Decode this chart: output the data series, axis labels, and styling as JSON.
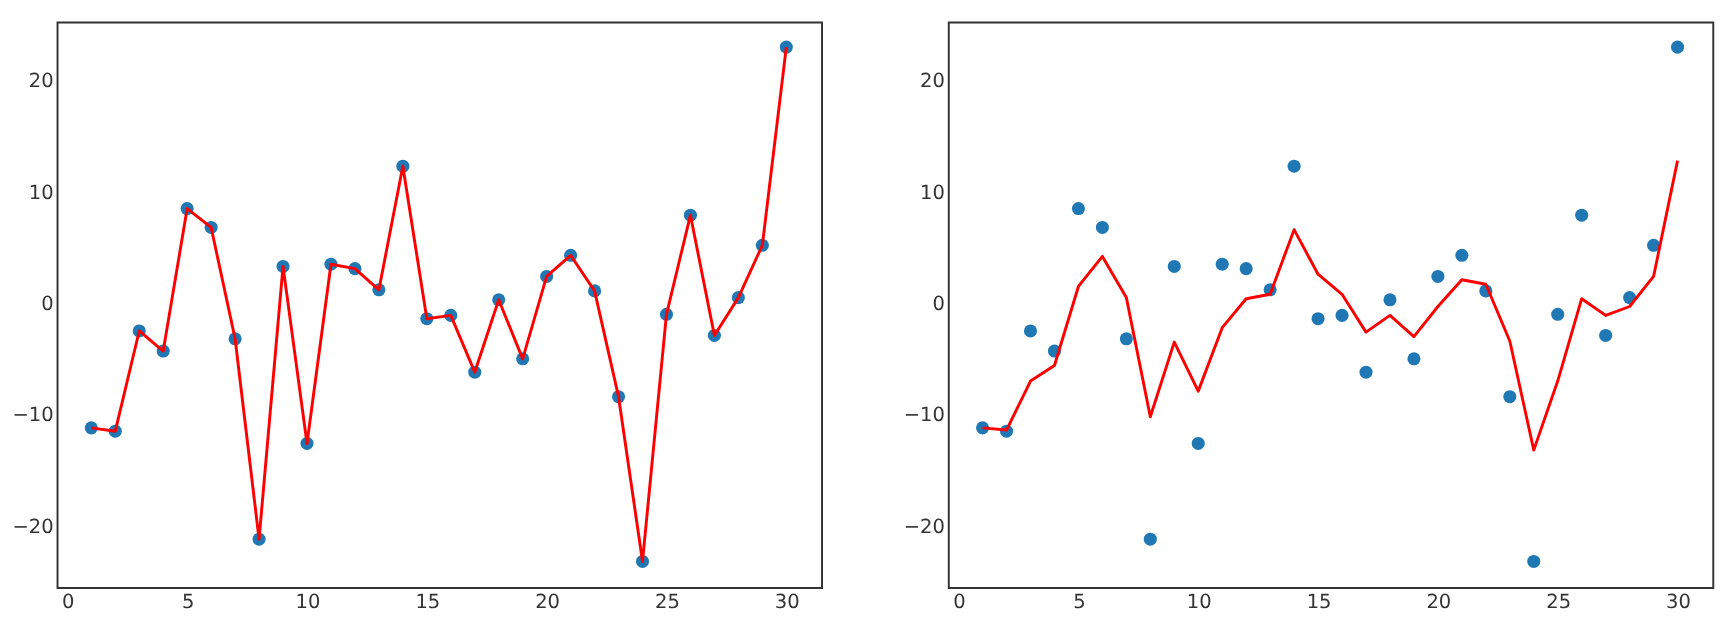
{
  "chart_data": [
    {
      "type": "scatter",
      "x": [
        1,
        2,
        3,
        4,
        5,
        6,
        7,
        8,
        9,
        10,
        11,
        12,
        13,
        14,
        15,
        16,
        17,
        18,
        19,
        20,
        21,
        22,
        23,
        24,
        25,
        26,
        27,
        28,
        29,
        30
      ],
      "xlim": [
        -0.45,
        31.45
      ],
      "xticks": [
        0,
        5,
        10,
        15,
        20,
        25,
        30
      ],
      "ylim": [
        -25.5,
        25.3
      ],
      "yticks": [
        -20,
        -10,
        0,
        10,
        20
      ],
      "grid": false,
      "series": [
        {
          "marker": "circle",
          "color": "#1f77b4",
          "values": [
            -11.2,
            -11.5,
            -2.5,
            -4.3,
            8.5,
            6.8,
            -3.2,
            -21.2,
            3.3,
            -12.6,
            3.5,
            3.1,
            1.2,
            12.3,
            -1.4,
            -1.1,
            -6.2,
            0.3,
            -5.0,
            2.4,
            4.3,
            1.1,
            -8.4,
            -23.2,
            -1.0,
            7.9,
            -2.9,
            0.5,
            5.2,
            23.0
          ]
        },
        {
          "type": "line",
          "marker": "none",
          "line_style": "solid",
          "color": "#ff0000",
          "values": [
            -11.2,
            -11.5,
            -2.5,
            -4.3,
            8.5,
            6.8,
            -3.2,
            -21.2,
            3.3,
            -12.6,
            3.5,
            3.1,
            1.2,
            12.3,
            -1.4,
            -1.1,
            -6.2,
            0.3,
            -5.0,
            2.4,
            4.3,
            1.1,
            -8.4,
            -23.2,
            -1.0,
            7.9,
            -2.9,
            0.5,
            5.2,
            23.0
          ]
        }
      ]
    },
    {
      "type": "scatter",
      "x": [
        1,
        2,
        3,
        4,
        5,
        6,
        7,
        8,
        9,
        10,
        11,
        12,
        13,
        14,
        15,
        16,
        17,
        18,
        19,
        20,
        21,
        22,
        23,
        24,
        25,
        26,
        27,
        28,
        29,
        30
      ],
      "xlim": [
        -0.45,
        31.45
      ],
      "xticks": [
        0,
        5,
        10,
        15,
        20,
        25,
        30
      ],
      "ylim": [
        -25.5,
        25.3
      ],
      "yticks": [
        -20,
        -10,
        0,
        10,
        20
      ],
      "grid": false,
      "series": [
        {
          "marker": "circle",
          "color": "#1f77b4",
          "values": [
            -11.2,
            -11.5,
            -2.5,
            -4.3,
            8.5,
            6.8,
            -3.2,
            -21.2,
            3.3,
            -12.6,
            3.5,
            3.1,
            1.2,
            12.3,
            -1.4,
            -1.1,
            -6.2,
            0.3,
            -5.0,
            2.4,
            4.3,
            1.1,
            -8.4,
            -23.2,
            -1.0,
            7.9,
            -2.9,
            0.5,
            5.2,
            23.0
          ]
        },
        {
          "type": "line",
          "marker": "none",
          "line_style": "solid",
          "color": "#ff0000",
          "values": [
            -11.2,
            -11.4,
            -7.0,
            -5.6,
            1.5,
            4.2,
            0.5,
            -10.2,
            -3.5,
            -7.9,
            -2.2,
            0.4,
            0.8,
            6.6,
            2.6,
            0.8,
            -2.6,
            -1.1,
            -3.0,
            -0.3,
            2.1,
            1.7,
            -3.4,
            -13.2,
            -7.0,
            0.4,
            -1.1,
            -0.3,
            2.4,
            12.8
          ]
        }
      ]
    }
  ]
}
